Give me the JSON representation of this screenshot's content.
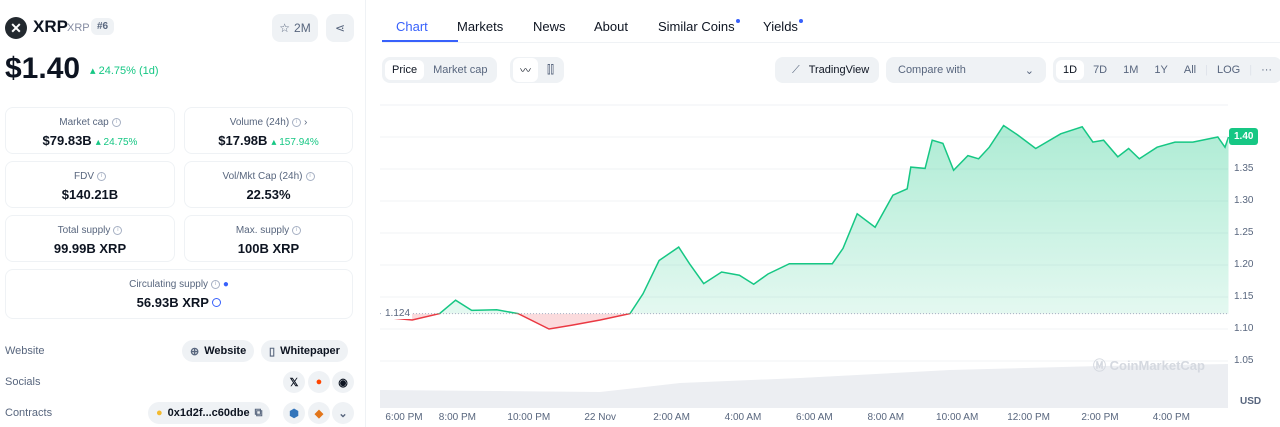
{
  "coin": {
    "name": "XRP",
    "symbol": "XRP",
    "rank": "#6",
    "watchlist": "2M",
    "price": "$1.40",
    "change": "24.75% (1d)"
  },
  "stats": [
    {
      "label": "Market cap",
      "value": "$79.83B",
      "change": "24.75%"
    },
    {
      "label": "Volume (24h)",
      "value": "$17.98B",
      "change": "157.94%"
    },
    {
      "label": "FDV",
      "value": "$140.21B"
    },
    {
      "label": "Vol/Mkt Cap (24h)",
      "value": "22.53%"
    },
    {
      "label": "Total supply",
      "value": "99.99B XRP"
    },
    {
      "label": "Max. supply",
      "value": "100B XRP"
    },
    {
      "label": "Circulating supply",
      "value": "56.93B XRP"
    }
  ],
  "links": {
    "website_label": "Website",
    "website_btn": "Website",
    "whitepaper_btn": "Whitepaper",
    "socials_label": "Socials",
    "contracts_label": "Contracts",
    "contract": "0x1d2f...c60dbe"
  },
  "tabs": [
    "Chart",
    "Markets",
    "News",
    "About",
    "Similar Coins",
    "Yields"
  ],
  "toolbar": {
    "price": "Price",
    "market_cap": "Market cap",
    "tradingview": "TradingView",
    "compare": "Compare with",
    "ranges": [
      "1D",
      "7D",
      "1M",
      "1Y",
      "All"
    ],
    "log": "LOG",
    "more": "···"
  },
  "colors": {
    "up": "#16c784",
    "down": "#ea3943",
    "accent": "#3861fb"
  },
  "chart_data": {
    "type": "line",
    "baseline": 1.124,
    "baseline_label": "1.124",
    "current_label": "1.40",
    "currency": "USD",
    "watermark": "CoinMarketCap",
    "ylim": [
      1.0,
      1.45
    ],
    "yticks": [
      "1.05",
      "1.10",
      "1.15",
      "1.20",
      "1.25",
      "1.30",
      "1.35",
      "1.40"
    ],
    "xticks": [
      "6:00 PM",
      "8:00 PM",
      "10:00 PM",
      "22 Nov",
      "2:00 AM",
      "4:00 AM",
      "6:00 AM",
      "8:00 AM",
      "10:00 AM",
      "12:00 PM",
      "2:00 PM",
      "4:00 PM"
    ],
    "points": [
      [
        "21 18:00",
        1.118
      ],
      [
        "21 18:44",
        1.114
      ],
      [
        "21 19:30",
        1.124
      ],
      [
        "21 19:57",
        1.145
      ],
      [
        "21 20:24",
        1.129
      ],
      [
        "21 21:06",
        1.13
      ],
      [
        "21 21:42",
        1.124
      ],
      [
        "21 22:34",
        1.1
      ],
      [
        "21 23:12",
        1.106
      ],
      [
        "22 00:00",
        1.114
      ],
      [
        "22 00:50",
        1.124
      ],
      [
        "22 01:12",
        1.155
      ],
      [
        "22 01:39",
        1.207
      ],
      [
        "22 02:12",
        1.228
      ],
      [
        "22 02:30",
        1.202
      ],
      [
        "22 02:54",
        1.171
      ],
      [
        "22 03:24",
        1.189
      ],
      [
        "22 03:54",
        1.184
      ],
      [
        "22 04:18",
        1.17
      ],
      [
        "22 04:42",
        1.186
      ],
      [
        "22 05:18",
        1.202
      ],
      [
        "22 05:54",
        1.202
      ],
      [
        "22 06:30",
        1.202
      ],
      [
        "22 06:48",
        1.226
      ],
      [
        "22 07:12",
        1.28
      ],
      [
        "22 07:42",
        1.259
      ],
      [
        "22 08:12",
        1.309
      ],
      [
        "22 08:36",
        1.319
      ],
      [
        "22 08:42",
        1.353
      ],
      [
        "22 09:06",
        1.351
      ],
      [
        "22 09:18",
        1.395
      ],
      [
        "22 09:36",
        1.39
      ],
      [
        "22 09:54",
        1.348
      ],
      [
        "22 10:18",
        1.371
      ],
      [
        "22 10:36",
        1.366
      ],
      [
        "22 10:54",
        1.384
      ],
      [
        "22 11:18",
        1.418
      ],
      [
        "22 11:42",
        1.403
      ],
      [
        "22 12:12",
        1.382
      ],
      [
        "22 12:54",
        1.405
      ],
      [
        "22 13:30",
        1.416
      ],
      [
        "22 13:48",
        1.392
      ],
      [
        "22 14:06",
        1.395
      ],
      [
        "22 14:30",
        1.369
      ],
      [
        "22 14:48",
        1.382
      ],
      [
        "22 15:06",
        1.366
      ],
      [
        "22 15:36",
        1.384
      ],
      [
        "22 16:06",
        1.392
      ],
      [
        "22 16:36",
        1.392
      ],
      [
        "22 17:18",
        1.4
      ],
      [
        "22 17:30",
        1.384
      ],
      [
        "22 17:36",
        1.4
      ]
    ]
  }
}
